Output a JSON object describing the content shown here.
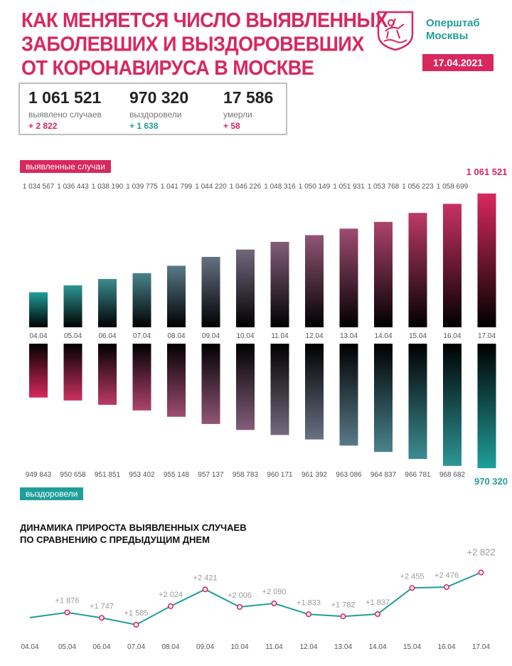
{
  "header": {
    "title_lines": [
      "КАК МЕНЯЕТСЯ ЧИСЛО ВЫЯВЛЕННЫХ",
      "ЗАБОЛЕВШИХ И ВЫЗДОРОВЕВШИХ",
      "ОТ КОРОНАВИРУСА В МОСКВЕ"
    ],
    "org_line1": "Оперштаб",
    "org_line2": "Москвы",
    "date": "17.04.2021"
  },
  "summary": {
    "cases": {
      "value": "1 061 521",
      "label": "выявлено случаев",
      "delta": "+ 2 822"
    },
    "recovered": {
      "value": "970 320",
      "label": "выздоровели",
      "delta": "+ 1 638"
    },
    "deaths": {
      "value": "17 586",
      "label": "умерли",
      "delta": "+ 58"
    }
  },
  "colors": {
    "pink": "#d8285e",
    "teal": "#1f9e9a",
    "grey": "#999999"
  },
  "chart_data": [
    {
      "type": "bar",
      "title": "выявленные случаи",
      "categories": [
        "04.04",
        "05.04",
        "06.04",
        "07.04",
        "08.04",
        "09.04",
        "10.04",
        "11.04",
        "12.04",
        "13.04",
        "14.04",
        "15.04",
        "16.04",
        "17.04"
      ],
      "values": [
        1034567,
        1036443,
        1038190,
        1039775,
        1041799,
        1044220,
        1046226,
        1048316,
        1050149,
        1051931,
        1053768,
        1056223,
        1058699,
        1061521
      ],
      "value_labels": [
        "1 034 567",
        "1 036 443",
        "1 038 190",
        "1 039 775",
        "1 041 799",
        "1 044 220",
        "1 046 226",
        "1 048 316",
        "1 050 149",
        "1 051 931",
        "1 053 768",
        "1 056 223",
        "1 058 699",
        "1 061 521"
      ]
    },
    {
      "type": "bar",
      "title": "выздоровели",
      "categories": [
        "04.04",
        "05.04",
        "06.04",
        "07.04",
        "08.04",
        "09.04",
        "10.04",
        "11.04",
        "12.04",
        "13.04",
        "14.04",
        "15.04",
        "16.04",
        "17.04"
      ],
      "values": [
        949843,
        950658,
        951851,
        953402,
        955148,
        957137,
        958783,
        960171,
        961392,
        963086,
        964837,
        966781,
        968682,
        970320
      ],
      "value_labels": [
        "949 843",
        "950 658",
        "951 851",
        "953 402",
        "955 148",
        "957 137",
        "958 783",
        "960 171",
        "961 392",
        "963 086",
        "964 837",
        "966 781",
        "968 682",
        "970 320"
      ]
    },
    {
      "type": "line",
      "title": "ДИНАМИКА ПРИРОСТА ВЫЯВЛЕННЫХ СЛУЧАЕВ ПО СРАВНЕНИЮ С ПРЕДЫДУЩИМ ДНЕМ",
      "title_lines": [
        "ДИНАМИКА ПРИРОСТА ВЫЯВЛЕННЫХ СЛУЧАЕВ",
        "ПО СРАВНЕНИЮ С ПРЕДЫДУЩИМ ДНЕМ"
      ],
      "categories": [
        "04.04",
        "05.04",
        "06.04",
        "07.04",
        "08.04",
        "09.04",
        "10.04",
        "11.04",
        "12.04",
        "13.04",
        "14.04",
        "15.04",
        "16.04",
        "17.04"
      ],
      "values": [
        null,
        1876,
        1747,
        1585,
        2024,
        2421,
        2006,
        2090,
        1833,
        1782,
        1837,
        2455,
        2476,
        2822
      ],
      "value_labels": [
        "",
        "+1 876",
        "+1 747",
        "+1 585",
        "+2 024",
        "+2 421",
        "+2 006",
        "+2 090",
        "+1 833",
        "+1 782",
        "+1 837",
        "+2 455",
        "+2 476",
        "+2 822"
      ]
    }
  ]
}
